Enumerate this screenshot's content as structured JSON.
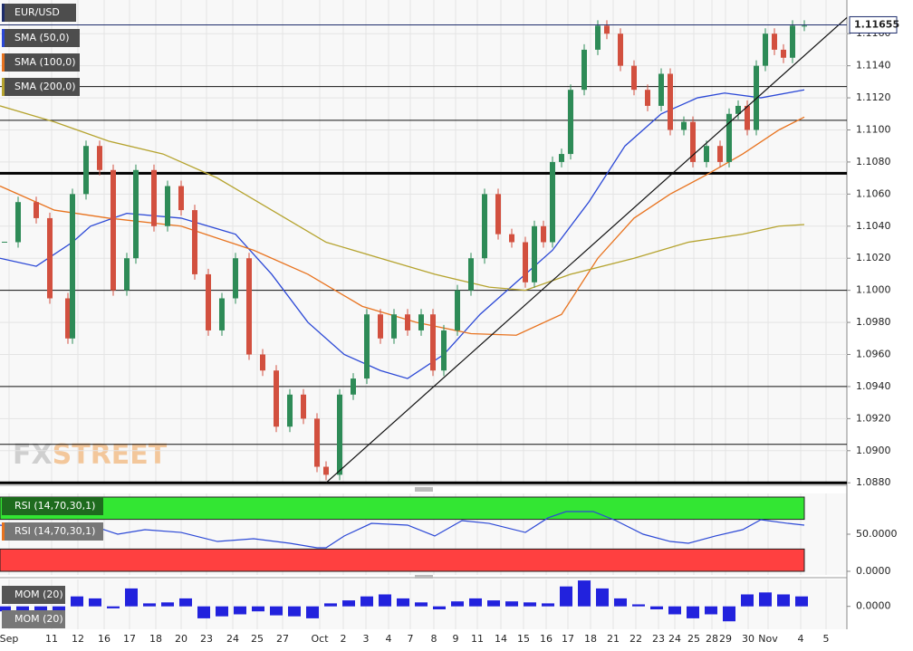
{
  "chart_data": [
    {
      "type": "candlestick",
      "name": "EUR/USD",
      "x": [
        0.5,
        2,
        4,
        5.5,
        7.5,
        8,
        9.5,
        11,
        12.5,
        14,
        15,
        17,
        18.5,
        20,
        21.5,
        23,
        24.5,
        26,
        27.5,
        29,
        30.5,
        32,
        33.5,
        35,
        36,
        37.5,
        39,
        40.5,
        42,
        43.5,
        45,
        46.5,
        47.8,
        49,
        50.5,
        52,
        53.5,
        55,
        56.5,
        58,
        59,
        60,
        61,
        62,
        63,
        64.5,
        66,
        67,
        68.5,
        70,
        71.5,
        73,
        74,
        75.5,
        76.5,
        78,
        79.5,
        80.5,
        81.5,
        82.5,
        83.5,
        84.5,
        85.5,
        86.5,
        87.5,
        88.8
      ],
      "close": [
        1.103,
        1.1055,
        1.1045,
        1.0995,
        1.097,
        1.106,
        1.109,
        1.1075,
        1.1,
        1.102,
        1.1075,
        1.104,
        1.1065,
        1.105,
        1.101,
        1.0975,
        1.0995,
        1.102,
        1.096,
        1.095,
        1.0915,
        1.0935,
        1.092,
        1.089,
        1.0885,
        1.0935,
        1.0945,
        1.0985,
        1.097,
        1.0985,
        1.0975,
        1.0985,
        1.095,
        1.0975,
        1.1,
        1.102,
        1.106,
        1.1035,
        1.103,
        1.1005,
        1.104,
        1.103,
        1.108,
        1.1085,
        1.1125,
        1.115,
        1.1165,
        1.116,
        1.114,
        1.1125,
        1.1115,
        1.1135,
        1.11,
        1.1105,
        1.108,
        1.109,
        1.108,
        1.111,
        1.1115,
        1.11,
        1.114,
        1.116,
        1.115,
        1.1145,
        1.1165,
        1.1165
      ],
      "up_color": "#2e8b57",
      "down_color": "#d2503f",
      "series": [
        {
          "name": "SMA (50,0)",
          "color": "#2b48d6",
          "x": [
            0,
            4,
            8,
            10,
            14,
            20,
            26,
            30,
            34,
            38,
            42,
            45,
            49,
            53,
            57,
            61,
            65,
            69,
            73,
            77,
            80,
            84,
            88.8
          ],
          "values": [
            1.102,
            1.1015,
            1.103,
            1.104,
            1.1048,
            1.1045,
            1.1035,
            1.101,
            1.098,
            1.096,
            1.095,
            1.0945,
            1.096,
            1.0985,
            1.1005,
            1.1025,
            1.1055,
            1.109,
            1.111,
            1.112,
            1.1123,
            1.112,
            1.1125
          ]
        },
        {
          "name": "SMA (100,0)",
          "color": "#e8731f",
          "x": [
            0,
            6,
            12,
            20,
            28,
            34,
            40,
            46,
            52,
            57,
            62,
            66,
            70,
            74,
            78,
            82,
            86,
            88.8
          ],
          "values": [
            1.1065,
            1.105,
            1.1045,
            1.104,
            1.1025,
            1.101,
            1.099,
            1.098,
            1.0973,
            1.0972,
            1.0985,
            1.102,
            1.1045,
            1.106,
            1.1072,
            1.1085,
            1.11,
            1.1108
          ]
        },
        {
          "name": "SMA (200,0)",
          "color": "#b5a32e",
          "x": [
            0,
            6,
            12,
            18,
            24,
            30,
            36,
            42,
            48,
            54,
            58,
            63,
            70,
            76,
            82,
            86,
            88.8
          ],
          "values": [
            1.1115,
            1.1105,
            1.1093,
            1.1085,
            1.107,
            1.105,
            1.103,
            1.102,
            1.101,
            1.1002,
            1.1,
            1.101,
            1.102,
            1.103,
            1.1035,
            1.104,
            1.1041
          ]
        }
      ],
      "levels": [
        1.1127,
        1.1106,
        1.1,
        1.094,
        1.0904
      ],
      "strong_levels": [
        1.1073,
        1.088
      ],
      "trendline": {
        "x": [
          36,
          93.5
        ],
        "values": [
          1.088,
          1.117
        ]
      },
      "last": {
        "value": 1.11655,
        "label": "1.11655"
      },
      "watermark": [
        "FX",
        "STREET"
      ],
      "xlim": [
        0,
        93.5
      ],
      "ylim": [
        1.0879,
        1.1181
      ],
      "yticks": [
        {
          "value": 1.088,
          "label": "1.0880"
        },
        {
          "value": 1.09,
          "label": "1.0900"
        },
        {
          "value": 1.092,
          "label": "1.0920"
        },
        {
          "value": 1.094,
          "label": "1.0940"
        },
        {
          "value": 1.096,
          "label": "1.0960"
        },
        {
          "value": 1.098,
          "label": "1.0980"
        },
        {
          "value": 1.1,
          "label": "1.1000"
        },
        {
          "value": 1.102,
          "label": "1.1020"
        },
        {
          "value": 1.104,
          "label": "1.1040"
        },
        {
          "value": 1.106,
          "label": "1.1060"
        },
        {
          "value": 1.108,
          "label": "1.1080"
        },
        {
          "value": 1.11,
          "label": "1.1100"
        },
        {
          "value": 1.112,
          "label": "1.1120"
        },
        {
          "value": 1.114,
          "label": "1.1140"
        },
        {
          "value": 1.116,
          "label": "1.1160"
        }
      ],
      "xticks": [
        {
          "value": 1,
          "label": "Sep"
        },
        {
          "value": 5.7,
          "label": "11"
        },
        {
          "value": 8.6,
          "label": "12"
        },
        {
          "value": 11.5,
          "label": "16"
        },
        {
          "value": 14.3,
          "label": "17"
        },
        {
          "value": 17.2,
          "label": "18"
        },
        {
          "value": 20,
          "label": "20"
        },
        {
          "value": 22.8,
          "label": "23"
        },
        {
          "value": 25.7,
          "label": "24"
        },
        {
          "value": 28.4,
          "label": "25"
        },
        {
          "value": 31.2,
          "label": "27"
        },
        {
          "value": 35.3,
          "label": "Oct"
        },
        {
          "value": 37.9,
          "label": "2"
        },
        {
          "value": 40.4,
          "label": "3"
        },
        {
          "value": 42.9,
          "label": "4"
        },
        {
          "value": 45.3,
          "label": "7"
        },
        {
          "value": 47.9,
          "label": "8"
        },
        {
          "value": 50.3,
          "label": "9"
        },
        {
          "value": 52.7,
          "label": "11"
        },
        {
          "value": 55.3,
          "label": "14"
        },
        {
          "value": 57.8,
          "label": "15"
        },
        {
          "value": 60.3,
          "label": "16"
        },
        {
          "value": 62.7,
          "label": "17"
        },
        {
          "value": 65.2,
          "label": "18"
        },
        {
          "value": 67.7,
          "label": "21"
        },
        {
          "value": 70.2,
          "label": "22"
        },
        {
          "value": 72.7,
          "label": "23"
        },
        {
          "value": 74.5,
          "label": "24"
        },
        {
          "value": 76.6,
          "label": "25"
        },
        {
          "value": 78.6,
          "label": "28"
        },
        {
          "value": 80.1,
          "label": "29"
        },
        {
          "value": 82.6,
          "label": "30"
        },
        {
          "value": 84.8,
          "label": "Nov"
        },
        {
          "value": 88.4,
          "label": "4"
        },
        {
          "value": 91.2,
          "label": "5"
        }
      ]
    },
    {
      "type": "line",
      "name": "RSI (14,70,30,1)",
      "color": "#2b48d6",
      "x": [
        0,
        4,
        8,
        10,
        13,
        16,
        20,
        24,
        28,
        32,
        35,
        36,
        38,
        41,
        45,
        48,
        51,
        54,
        58,
        60.5,
        62.5,
        65.5,
        68,
        71,
        74,
        76,
        79,
        82,
        84,
        87,
        88.8
      ],
      "values": [
        62.2,
        56.1,
        43.9,
        62.2,
        50,
        56.1,
        52.4,
        40.2,
        43.9,
        37.8,
        31.7,
        31.7,
        47.6,
        64.6,
        62.2,
        47.6,
        68.3,
        64.6,
        52.4,
        72.0,
        80.5,
        80.5,
        68.3,
        50,
        40.2,
        37.8,
        47.6,
        56.1,
        69.5,
        64.6,
        62.2
      ],
      "upper": 70,
      "lower": 30,
      "upper_color": "#33e633",
      "lower_color": "#ff4040",
      "ylim": [
        -4.9,
        104.9
      ],
      "yticks": [
        {
          "value": 50,
          "label": "50.0000"
        },
        {
          "value": 0,
          "label": "0.0000"
        }
      ]
    },
    {
      "type": "bar",
      "name": "MOM (20)",
      "color": "#2222dd",
      "x": [
        0.5,
        2.5,
        4.5,
        6.5,
        8.5,
        10.5,
        12.5,
        14.5,
        16.5,
        18.5,
        20.5,
        22.5,
        24.5,
        26.5,
        28.5,
        30.5,
        32.5,
        34.5,
        36.5,
        38.5,
        40.5,
        42.5,
        44.5,
        46.5,
        48.5,
        50.5,
        52.5,
        54.5,
        56.5,
        58.5,
        60.5,
        62.5,
        64.5,
        66.5,
        68.5,
        70.5,
        72.5,
        74.5,
        76.5,
        78.5,
        80.5,
        82.5,
        84.5,
        86.5,
        88.5
      ],
      "values": [
        -0.0005,
        -0.0008,
        -0.001,
        -0.0006,
        0.001,
        0.0008,
        -0.0002,
        0.0018,
        0.0003,
        0.0004,
        0.0008,
        -0.0012,
        -0.001,
        -0.0008,
        -0.0005,
        -0.0009,
        -0.001,
        -0.0012,
        0.0003,
        0.0006,
        0.001,
        0.0012,
        0.0008,
        0.0004,
        -0.0003,
        0.0005,
        0.0008,
        0.0006,
        0.0005,
        0.0004,
        0.0003,
        0.002,
        0.0026,
        0.0018,
        0.0008,
        0.0002,
        -0.0003,
        -0.0008,
        -0.0012,
        -0.0008,
        -0.0015,
        0.0012,
        0.0014,
        0.0012,
        0.001
      ],
      "ylim": [
        -0.0023,
        0.0027
      ],
      "yticks": [
        {
          "value": 0,
          "label": "0.0000"
        }
      ]
    }
  ]
}
